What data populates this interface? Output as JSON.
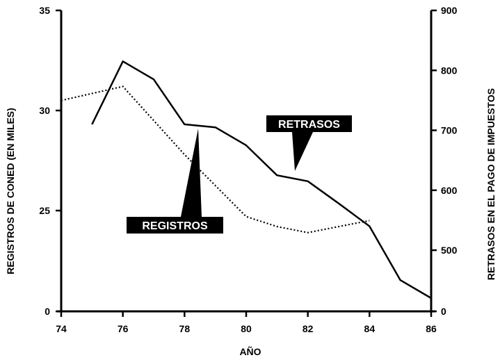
{
  "chart_data": {
    "type": "line",
    "title": "",
    "xlabel": "AÑO",
    "ylabel_left": "REGISTROS DE CONED (EN MILES)",
    "ylabel_right": "RETRASOS EN EL PAGO DE IMPUESTOS",
    "x_ticks": [
      "74",
      "76",
      "78",
      "80",
      "82",
      "84",
      "86"
    ],
    "y_left_ticks": [
      "0",
      "25",
      "30",
      "35"
    ],
    "y_right_ticks": [
      "0",
      "500",
      "600",
      "700",
      "800",
      "900"
    ],
    "xlim": [
      74,
      86
    ],
    "grid": false,
    "series": [
      {
        "name": "REGISTROS",
        "axis": "left",
        "style": "dotted",
        "x": [
          74,
          76,
          78,
          80,
          81,
          82,
          83,
          84
        ],
        "y": [
          30.5,
          31.2,
          27.8,
          24.7,
          24.2,
          23.9,
          24.2,
          24.5
        ]
      },
      {
        "name": "RETRASOS",
        "axis": "right",
        "style": "solid",
        "x": [
          75,
          76,
          77,
          78,
          79,
          80,
          81,
          82,
          83,
          84,
          85,
          86
        ],
        "y": [
          710,
          815,
          785,
          710,
          705,
          675,
          625,
          615,
          578,
          540,
          450,
          420
        ]
      }
    ]
  }
}
